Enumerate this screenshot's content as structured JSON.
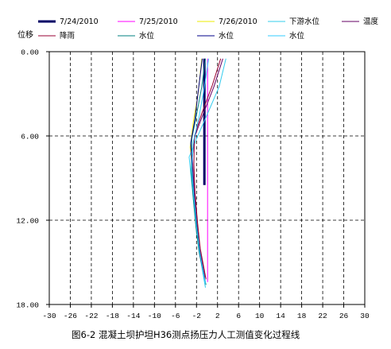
{
  "chart_data": {
    "type": "line",
    "ylabel": "位移",
    "caption": "图6-2  混凝土坝护坦H36测点扬压力人工测值变化过程线",
    "xlim": [
      -30,
      30
    ],
    "ylim": [
      0,
      18
    ],
    "y_reversed": true,
    "grid": true,
    "legend_placement": "top",
    "x_ticks": [
      "-30",
      "-26",
      "-22",
      "-18",
      "-14",
      "-10",
      "-6",
      "-2",
      "2",
      "6",
      "10",
      "14",
      "18",
      "22",
      "26",
      "30"
    ],
    "y_ticks": [
      "0.00",
      "6.00",
      "12.00",
      "18.00"
    ],
    "series": [
      {
        "name": "7/24/2010",
        "color": "#000066",
        "width": 3,
        "points": [
          [
            -0.5,
            0.5
          ],
          [
            -0.5,
            3
          ],
          [
            -0.5,
            6
          ],
          [
            -0.5,
            9.5
          ]
        ]
      },
      {
        "name": "7/25/2010",
        "color": "#ff00ff",
        "width": 1,
        "points": [
          [
            0.1,
            0.5
          ],
          [
            0.1,
            3
          ],
          [
            0.1,
            6
          ],
          [
            0.1,
            9
          ],
          [
            0.1,
            12
          ],
          [
            0.1,
            15
          ],
          [
            0.1,
            16.4
          ]
        ]
      },
      {
        "name": "7/26/2010",
        "color": "#eeee00",
        "width": 1,
        "points": [
          [
            -1.0,
            0.5
          ],
          [
            -1.7,
            3.0
          ],
          [
            -2.6,
            5.0
          ],
          [
            -3.2,
            6.8
          ],
          [
            -2.6,
            9.0
          ],
          [
            -2.0,
            11.5
          ],
          [
            -1.4,
            13.8
          ],
          [
            -0.5,
            16.0
          ]
        ]
      },
      {
        "name": "下游水位",
        "color": "#33ccee",
        "width": 1,
        "points": [
          [
            3.6,
            0.5
          ],
          [
            2.3,
            2.5
          ],
          [
            0.0,
            4.5
          ],
          [
            -2.0,
            6.2
          ],
          [
            -3.4,
            7.5
          ],
          [
            -2.8,
            9.8
          ],
          [
            -2.2,
            12.0
          ],
          [
            -1.6,
            14.0
          ],
          [
            -0.3,
            16.8
          ]
        ]
      },
      {
        "name": "温度",
        "color": "#660066",
        "width": 1,
        "points": [
          [
            3.0,
            0.5
          ],
          [
            1.3,
            2.5
          ],
          [
            -0.8,
            4.5
          ],
          [
            -2.3,
            6.0
          ],
          [
            -2.8,
            7.5
          ],
          [
            -2.5,
            9.5
          ],
          [
            -2.0,
            12.0
          ],
          [
            -1.5,
            13.8
          ],
          [
            -0.4,
            16.1
          ]
        ]
      },
      {
        "name": "降雨",
        "color": "#990033",
        "width": 1,
        "points": [
          [
            2.6,
            0.5
          ],
          [
            1.0,
            2.4
          ],
          [
            -1.0,
            4.4
          ],
          [
            -2.4,
            6.0
          ],
          [
            -2.5,
            8.0
          ],
          [
            -2.3,
            10.0
          ],
          [
            -1.8,
            12.2
          ],
          [
            -1.3,
            14.0
          ],
          [
            -0.2,
            16.2
          ]
        ]
      },
      {
        "name": "水位",
        "color": "#008080",
        "width": 1,
        "points": [
          [
            -0.3,
            0.5
          ],
          [
            -1.0,
            2.5
          ],
          [
            -2.0,
            4.5
          ],
          [
            -2.9,
            6.2
          ],
          [
            -3.0,
            8.5
          ],
          [
            -2.6,
            10.5
          ],
          [
            -2.1,
            12.5
          ],
          [
            -1.5,
            14.3
          ],
          [
            -0.2,
            16.6
          ]
        ]
      },
      {
        "name": "水位",
        "color": "#000088",
        "width": 1,
        "points": [
          [
            -0.9,
            0.5
          ],
          [
            -1.6,
            2.6
          ],
          [
            -2.3,
            4.8
          ],
          [
            -3.1,
            6.5
          ],
          [
            -2.8,
            8.5
          ],
          [
            -2.4,
            10.5
          ],
          [
            -1.9,
            12.5
          ],
          [
            -1.3,
            14.5
          ],
          [
            -0.4,
            16.3
          ]
        ]
      },
      {
        "name": "水位",
        "color": "#33ccff",
        "width": 1,
        "points": [
          [
            0.3,
            0.5
          ],
          [
            -0.5,
            2.5
          ],
          [
            -1.5,
            4.6
          ],
          [
            -2.6,
            6.4
          ],
          [
            -2.9,
            8.3
          ],
          [
            -2.5,
            10.3
          ],
          [
            -2.0,
            12.4
          ],
          [
            -1.4,
            14.2
          ],
          [
            -0.3,
            16.5
          ]
        ]
      }
    ]
  }
}
